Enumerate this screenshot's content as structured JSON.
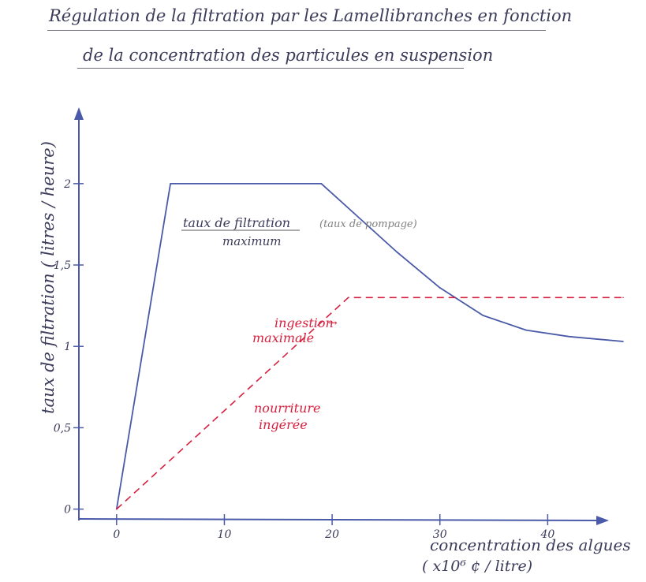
{
  "title": {
    "line1": "Régulation de la filtration par les Lamellibranches en fonction",
    "line2": "de la concentration des particules en suspension"
  },
  "chart_data": {
    "type": "line",
    "ylabel": "taux de filtration ( litres / heure)",
    "xlabel_line1": "concentration des algues",
    "xlabel_line2": "( x10⁶ ¢ / litre)",
    "x_ticks": [
      0,
      10,
      20,
      30,
      40
    ],
    "x_tick_labels": [
      "0",
      "10",
      "20",
      "30",
      "40"
    ],
    "y_ticks": [
      0,
      0.5,
      1,
      1.5,
      2
    ],
    "y_tick_labels": [
      "0",
      "0,5",
      "1",
      "1,5",
      "2"
    ],
    "xlim": [
      -3.5,
      47
    ],
    "ylim": [
      -0.07,
      2.45
    ],
    "series": [
      {
        "color": "#4a5aa8",
        "style": "solid",
        "x": [
          0,
          5,
          19,
          22,
          26,
          30,
          34,
          38,
          42,
          47
        ],
        "y": [
          0,
          2,
          2,
          1.82,
          1.58,
          1.36,
          1.19,
          1.1,
          1.06,
          1.03
        ]
      },
      {
        "color": "#d6203f",
        "style": "dashed",
        "x": [
          0,
          21.5,
          47
        ],
        "y": [
          0,
          1.3,
          1.3
        ]
      }
    ],
    "annotations": {
      "max_filtration_line1": "taux de filtration",
      "max_filtration_line2": "maximum",
      "pumping": "(taux de pompage)",
      "max_ingestion_line1": "ingestion",
      "max_ingestion_line2": "maximale",
      "food_line1": "nourriture",
      "food_line2": "ingérée"
    }
  },
  "colors": {
    "axis": "#4a5aa8",
    "filtration": "#4a5aa8",
    "ingestion": "#d6203f",
    "text": "#3b3b5a",
    "gray_text": "#808080"
  }
}
